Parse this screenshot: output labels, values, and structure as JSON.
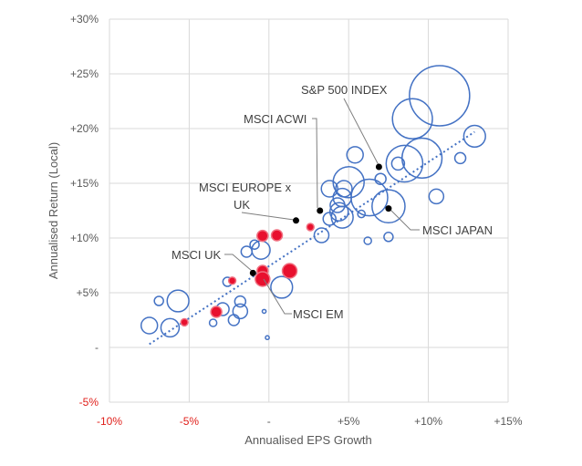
{
  "chart_data": {
    "type": "scatter",
    "subtype": "bubble",
    "xlabel": "Annualised EPS Growth",
    "ylabel": "Annualised Return (Local)",
    "xlim": [
      -10,
      15
    ],
    "ylim": [
      -5,
      30
    ],
    "grid": true,
    "x_ticks": [
      {
        "v": -10,
        "label": "-10%",
        "color": "#e0201b"
      },
      {
        "v": -5,
        "label": "-5%",
        "color": "#e0201b"
      },
      {
        "v": 0,
        "label": "-",
        "color": "#595959"
      },
      {
        "v": 5,
        "label": "+5%",
        "color": "#595959"
      },
      {
        "v": 10,
        "label": "+10%",
        "color": "#595959"
      },
      {
        "v": 15,
        "label": "+15%",
        "color": "#595959"
      }
    ],
    "y_ticks": [
      {
        "v": -5,
        "label": "-5%",
        "color": "#e0201b"
      },
      {
        "v": 0,
        "label": "-",
        "color": "#595959"
      },
      {
        "v": 5,
        "label": "+5%",
        "color": "#595959"
      },
      {
        "v": 10,
        "label": "+10%",
        "color": "#595959"
      },
      {
        "v": 15,
        "label": "+15%",
        "color": "#595959"
      },
      {
        "v": 20,
        "label": "+20%",
        "color": "#595959"
      },
      {
        "v": 25,
        "label": "+25%",
        "color": "#595959"
      },
      {
        "v": 30,
        "label": "+30%",
        "color": "#595959"
      }
    ],
    "colors": {
      "blue": "#4472c4",
      "red": "#e8102e",
      "black": "#000000",
      "grid": "#d9d9d9",
      "trend": "#4472c4"
    },
    "trendline": [
      [
        -7.5,
        0.3
      ],
      [
        12.9,
        19.7
      ]
    ],
    "blue_bubbles": [
      [
        10.7,
        23.0,
        100
      ],
      [
        9.0,
        20.9,
        44
      ],
      [
        12.9,
        19.3,
        13
      ],
      [
        9.6,
        17.3,
        44
      ],
      [
        8.5,
        16.8,
        37
      ],
      [
        8.1,
        16.8,
        4.5
      ],
      [
        12.0,
        17.3,
        3.3
      ],
      [
        5.4,
        17.6,
        7.4
      ],
      [
        7.0,
        15.4,
        3.3
      ],
      [
        5.0,
        15.1,
        26.5
      ],
      [
        6.3,
        13.7,
        37
      ],
      [
        7.5,
        12.9,
        30
      ],
      [
        10.5,
        13.8,
        5.9
      ],
      [
        3.8,
        14.5,
        7.4
      ],
      [
        4.7,
        14.5,
        7.4
      ],
      [
        4.6,
        13.7,
        9.2
      ],
      [
        4.3,
        13.0,
        5.9
      ],
      [
        4.4,
        12.4,
        9.2
      ],
      [
        3.8,
        11.75,
        4.5
      ],
      [
        4.6,
        11.9,
        13
      ],
      [
        3.3,
        10.25,
        5.9
      ],
      [
        5.8,
        12.2,
        1.5
      ],
      [
        6.2,
        9.75,
        1.5
      ],
      [
        7.5,
        10.1,
        2.3
      ],
      [
        -0.5,
        8.9,
        9.2
      ],
      [
        -0.9,
        9.4,
        2.3
      ],
      [
        -1.4,
        8.75,
        3.3
      ],
      [
        0.8,
        5.5,
        13
      ],
      [
        -2.6,
        6.0,
        2.3
      ],
      [
        -5.7,
        4.25,
        13
      ],
      [
        -6.9,
        4.25,
        2.3
      ],
      [
        -1.8,
        4.2,
        3.3
      ],
      [
        -1.8,
        3.3,
        5.9
      ],
      [
        -2.9,
        3.5,
        4.5
      ],
      [
        -2.2,
        2.5,
        3.3
      ],
      [
        -3.5,
        2.25,
        1.5
      ],
      [
        -7.5,
        2.0,
        7.4
      ],
      [
        -6.2,
        1.8,
        9.2
      ],
      [
        -0.3,
        3.3,
        0.4
      ],
      [
        -0.1,
        0.9,
        0.4
      ]
    ],
    "red_bubbles": [
      [
        -0.4,
        10.2,
        2.3
      ],
      [
        0.5,
        10.25,
        2.3
      ],
      [
        2.6,
        11.0,
        0.8
      ],
      [
        -0.4,
        7.0,
        2.3
      ],
      [
        -0.4,
        6.25,
        4.5
      ],
      [
        1.3,
        7.0,
        4.5
      ],
      [
        -2.3,
        6.1,
        0.8
      ],
      [
        -3.3,
        3.25,
        2.3
      ],
      [
        -5.3,
        2.3,
        0.8
      ]
    ],
    "labeled_points": [
      {
        "name": "S&P 500 INDEX",
        "x": 6.9,
        "y": 16.5
      },
      {
        "name": "MSCI ACWI",
        "x": 3.2,
        "y": 12.5
      },
      {
        "name": "MSCI EUROPE x UK",
        "line1": "MSCI EUROPE x",
        "line2": "UK",
        "x": 1.7,
        "y": 11.6
      },
      {
        "name": "MSCI UK",
        "x": -1.0,
        "y": 6.8
      },
      {
        "name": "MSCI EM",
        "x": -0.4,
        "y": 6.25
      },
      {
        "name": "MSCI JAPAN",
        "x": 7.5,
        "y": 12.7
      }
    ]
  }
}
